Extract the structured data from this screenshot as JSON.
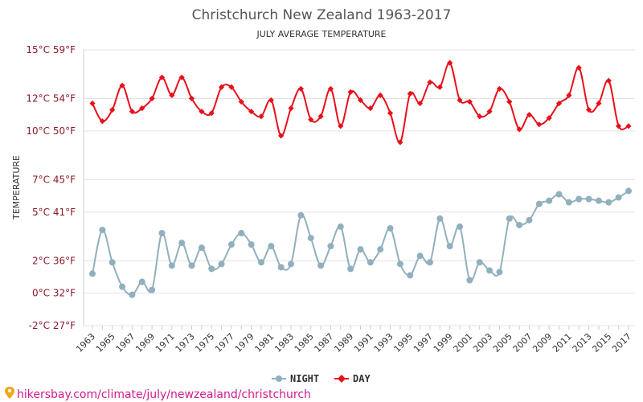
{
  "colors": {
    "day": "#e8101a",
    "night": "#91b0bd",
    "accent": "#8b1a2b",
    "source": "#d11a8c"
  },
  "legend": {
    "night_label": "NIGHT",
    "day_label": "DAY"
  },
  "source": {
    "icon": "map-pin-icon",
    "text": "hikersbay.com/climate/july/newzealand/christchurch"
  },
  "chart_data": {
    "type": "line",
    "title": "Christchurch New Zealand 1963-2017",
    "subtitle": "JULY AVERAGE TEMPERATURE",
    "ylabel": "TEMPERATURE",
    "xlabel": "",
    "ylim": [
      -2,
      15
    ],
    "yticks": [
      {
        "value": 15,
        "label": "15°C 59°F"
      },
      {
        "value": 12,
        "label": "12°C 54°F"
      },
      {
        "value": 10,
        "label": "10°C 50°F"
      },
      {
        "value": 7,
        "label": "7°C 45°F"
      },
      {
        "value": 5,
        "label": "5°C 41°F"
      },
      {
        "value": 2,
        "label": "2°C 36°F"
      },
      {
        "value": 0,
        "label": "0°C 32°F"
      },
      {
        "value": -2,
        "label": "-2°C 27°F"
      }
    ],
    "x": [
      1963,
      1964,
      1965,
      1966,
      1967,
      1968,
      1969,
      1970,
      1971,
      1972,
      1973,
      1974,
      1975,
      1976,
      1977,
      1978,
      1979,
      1980,
      1981,
      1982,
      1983,
      1984,
      1985,
      1986,
      1987,
      1988,
      1989,
      1990,
      1991,
      1992,
      1993,
      1994,
      1995,
      1996,
      1997,
      1998,
      1999,
      2000,
      2001,
      2002,
      2003,
      2004,
      2005,
      2006,
      2007,
      2008,
      2009,
      2010,
      2011,
      2012,
      2013,
      2014,
      2015,
      2016,
      2017
    ],
    "xtick_labels": [
      "1963",
      "1965",
      "1967",
      "1969",
      "1971",
      "1973",
      "1975",
      "1977",
      "1979",
      "1981",
      "1983",
      "1985",
      "1987",
      "1989",
      "1991",
      "1993",
      "1995",
      "1997",
      "1999",
      "2001",
      "2003",
      "2005",
      "2007",
      "2009",
      "2011",
      "2013",
      "2015",
      "2017"
    ],
    "grid": true,
    "legend_position": "bottom",
    "series": [
      {
        "name": "NIGHT",
        "values": [
          1.2,
          3.9,
          1.9,
          0.4,
          -0.1,
          0.7,
          0.2,
          3.7,
          1.7,
          3.1,
          1.7,
          2.8,
          1.5,
          1.8,
          3.0,
          3.7,
          3.0,
          1.9,
          2.9,
          1.6,
          1.8,
          4.8,
          3.4,
          1.7,
          2.9,
          4.1,
          1.5,
          2.7,
          1.9,
          2.7,
          4.0,
          1.8,
          1.1,
          2.3,
          1.9,
          4.6,
          2.9,
          4.1,
          0.8,
          1.9,
          1.4,
          1.3,
          4.6,
          4.2,
          4.5,
          5.5,
          5.7,
          6.1,
          5.6,
          5.8,
          5.8,
          5.7,
          5.6,
          5.9,
          6.3
        ]
      },
      {
        "name": "DAY",
        "values": [
          11.7,
          10.6,
          11.3,
          12.8,
          11.2,
          11.4,
          12.0,
          13.3,
          12.2,
          13.3,
          12.0,
          11.2,
          11.1,
          12.7,
          12.7,
          11.8,
          11.2,
          10.9,
          11.9,
          9.7,
          11.4,
          12.6,
          10.7,
          10.9,
          12.6,
          10.3,
          12.4,
          11.9,
          11.4,
          12.2,
          11.1,
          9.3,
          12.3,
          11.7,
          13.0,
          12.7,
          14.2,
          11.9,
          11.8,
          10.9,
          11.2,
          12.6,
          11.8,
          10.1,
          11.0,
          10.4,
          10.8,
          11.7,
          12.2,
          13.9,
          11.3,
          11.7,
          13.1,
          10.3,
          10.3
        ]
      }
    ]
  }
}
